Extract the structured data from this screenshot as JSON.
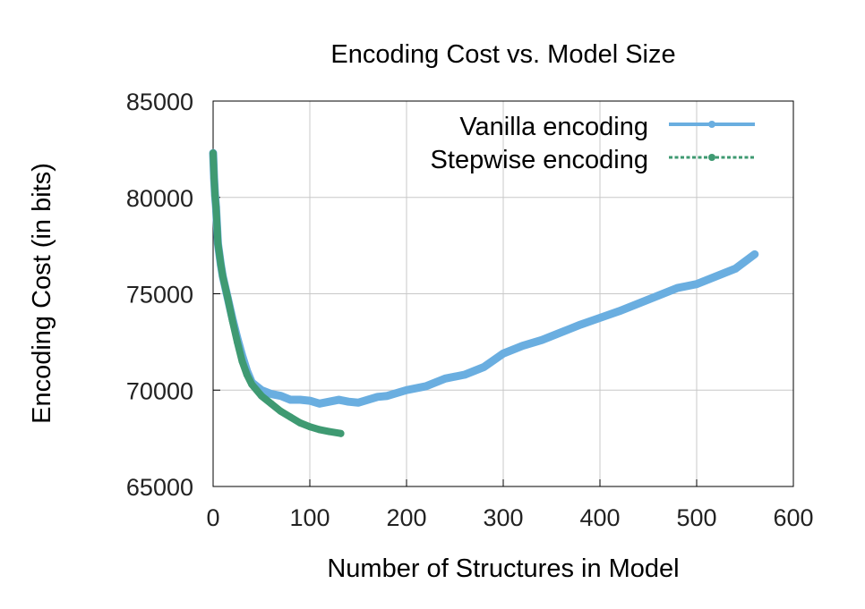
{
  "chart_data": {
    "type": "line",
    "title": "Encoding Cost vs. Model Size",
    "xlabel": "Number of Structures in Model",
    "ylabel": "Encoding Cost (in bits)",
    "xlim": [
      0,
      600
    ],
    "ylim": [
      65000,
      85000
    ],
    "xticks": [
      0,
      100,
      200,
      300,
      400,
      500,
      600
    ],
    "yticks": [
      65000,
      70000,
      75000,
      80000,
      85000
    ],
    "grid": true,
    "legend_position": "top-right",
    "series": [
      {
        "name": "Vanilla encoding",
        "color": "#6aaee0",
        "style": "solid",
        "x": [
          0,
          1,
          2,
          3,
          5,
          8,
          10,
          15,
          20,
          25,
          30,
          35,
          40,
          50,
          60,
          70,
          80,
          90,
          100,
          110,
          120,
          130,
          140,
          150,
          160,
          170,
          180,
          200,
          220,
          240,
          260,
          280,
          300,
          320,
          340,
          360,
          380,
          400,
          420,
          440,
          460,
          480,
          500,
          520,
          540,
          560
        ],
        "y": [
          82300,
          81000,
          80100,
          79500,
          77600,
          76500,
          75900,
          74800,
          73700,
          72700,
          71800,
          71000,
          70400,
          70000,
          69800,
          69700,
          69500,
          69500,
          69450,
          69300,
          69400,
          69500,
          69400,
          69350,
          69500,
          69650,
          69700,
          70000,
          70200,
          70600,
          70800,
          71200,
          71900,
          72300,
          72600,
          73000,
          73400,
          73750,
          74100,
          74500,
          74900,
          75300,
          75500,
          75900,
          76300,
          77050
        ]
      },
      {
        "name": "Stepwise encoding",
        "color": "#3f9a72",
        "style": "dotted",
        "x": [
          0,
          1,
          2,
          3,
          5,
          8,
          10,
          15,
          20,
          25,
          30,
          35,
          40,
          50,
          60,
          70,
          80,
          90,
          100,
          110,
          120,
          132
        ],
        "y": [
          82300,
          81000,
          80100,
          79500,
          77600,
          76500,
          75900,
          74800,
          73600,
          72500,
          71500,
          70800,
          70300,
          69700,
          69300,
          68900,
          68600,
          68300,
          68100,
          67950,
          67850,
          67750
        ]
      }
    ]
  }
}
